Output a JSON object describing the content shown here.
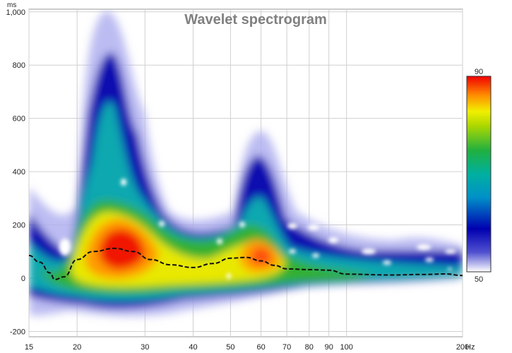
{
  "chart_data": {
    "type": "heatmap",
    "title": "Wavelet spectrogram",
    "x_unit": "Hz",
    "y_unit": "ms",
    "x_scale": "log",
    "xlim": [
      15,
      200
    ],
    "ylim": [
      -220,
      1010
    ],
    "x_ticks": [
      15,
      20,
      30,
      40,
      50,
      60,
      70,
      80,
      90,
      100,
      200
    ],
    "x_tick_labels": [
      "15",
      "20",
      "30",
      "40",
      "50",
      "60",
      "70",
      "80",
      "90",
      "100",
      "200"
    ],
    "y_ticks": [
      -200,
      0,
      200,
      400,
      600,
      800,
      1000
    ],
    "y_tick_labels": [
      "-200",
      "0",
      "200",
      "400",
      "600",
      "800",
      "1,000"
    ],
    "colorbar": {
      "min": 50,
      "max": 90,
      "min_label": "50",
      "max_label": "90"
    },
    "regions": [
      {
        "label": "peak",
        "freq_hz": 27,
        "time_ms": 100,
        "level": 90
      },
      {
        "label": "peak",
        "freq_hz": 58,
        "time_ms": 60,
        "level": 86
      },
      {
        "label": "ridge",
        "freq_hz": 25,
        "time_ms": 800,
        "level": 60
      },
      {
        "label": "ridge",
        "freq_hz": 57,
        "time_ms": 420,
        "level": 62
      }
    ],
    "series": [
      {
        "name": "dashed-line",
        "x": [
          15,
          16,
          17,
          17.5,
          18.5,
          20,
          22,
          25,
          28,
          31,
          35,
          40,
          45,
          50,
          55,
          60,
          65,
          70,
          80,
          90,
          100,
          130,
          160,
          180,
          200
        ],
        "y": [
          85,
          60,
          20,
          -5,
          5,
          70,
          100,
          112,
          100,
          70,
          50,
          40,
          55,
          75,
          78,
          65,
          48,
          35,
          32,
          30,
          15,
          12,
          14,
          16,
          10
        ]
      }
    ]
  }
}
